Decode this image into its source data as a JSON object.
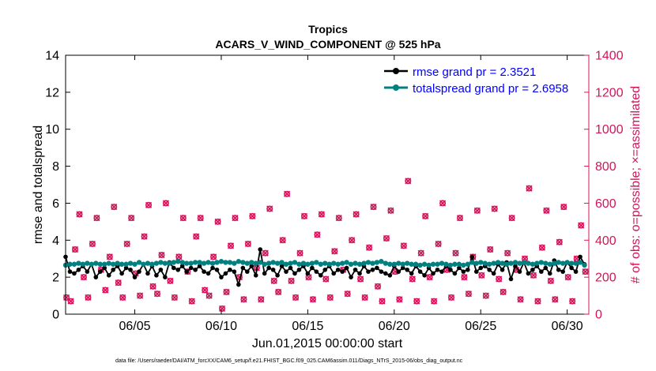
{
  "chart_data": {
    "type": "line",
    "title": "Tropics",
    "subtitle": "ACARS_V_WIND_COMPONENT @ 525 hPa",
    "xlabel": "Jun.01,2015 00:00:00 start",
    "ylabel": "rmse and totalspread",
    "y2label": "# of obs: o=possible; ×=assimilated",
    "footnote": "data file: /Users/raeder/DAI/ATM_forcXX/CAM6_setup/f.e21.FHIST_BGC.f09_025.CAM6assim.011/Diags_NTrS_2015-06/obs_diag_output.nc",
    "xlim": [
      1,
      31.25
    ],
    "ylim": [
      0,
      14
    ],
    "y2lim": [
      0,
      1400
    ],
    "xticks": [
      5,
      10,
      15,
      20,
      25,
      30
    ],
    "xtick_labels": [
      "06/05",
      "06/10",
      "06/15",
      "06/20",
      "06/25",
      "06/30"
    ],
    "yticks": [
      0,
      2,
      4,
      6,
      8,
      10,
      12,
      14
    ],
    "ytick_labels": [
      "0",
      "2",
      "4",
      "6",
      "8",
      "10",
      "12",
      "14"
    ],
    "y2ticks": [
      0,
      200,
      400,
      600,
      800,
      1000,
      1200,
      1400
    ],
    "y2tick_labels": [
      "0",
      "200",
      "400",
      "600",
      "800",
      "1000",
      "1200",
      "1400"
    ],
    "legend_position": "top-right",
    "colors": {
      "rmse": "#000000",
      "spread": "#008080",
      "obs": "#d4145a",
      "legend_text": "#0000ff",
      "axis": "#000000",
      "y2axis": "#d4145a"
    },
    "series": [
      {
        "name": "rmse grand pr = 2.3521",
        "x": [
          1.0,
          1.25,
          1.5,
          1.75,
          2.0,
          2.25,
          2.5,
          2.75,
          3.0,
          3.25,
          3.5,
          3.75,
          4.0,
          4.25,
          4.5,
          4.75,
          5.0,
          5.25,
          5.5,
          5.75,
          6.0,
          6.25,
          6.5,
          6.75,
          7.0,
          7.25,
          7.5,
          7.75,
          8.0,
          8.25,
          8.5,
          8.75,
          9.0,
          9.25,
          9.5,
          9.75,
          10.0,
          10.25,
          10.5,
          10.75,
          11.0,
          11.25,
          11.5,
          11.75,
          12.0,
          12.25,
          12.5,
          12.75,
          13.0,
          13.25,
          13.5,
          13.75,
          14.0,
          14.25,
          14.5,
          14.75,
          15.0,
          15.25,
          15.5,
          15.75,
          16.0,
          16.25,
          16.5,
          16.75,
          17.0,
          17.25,
          17.5,
          17.75,
          18.0,
          18.25,
          18.5,
          18.75,
          19.0,
          19.25,
          19.5,
          19.75,
          20.0,
          20.25,
          20.5,
          20.75,
          21.0,
          21.25,
          21.5,
          21.75,
          22.0,
          22.25,
          22.5,
          22.75,
          23.0,
          23.25,
          23.5,
          23.75,
          24.0,
          24.25,
          24.5,
          24.75,
          25.0,
          25.25,
          25.5,
          25.75,
          26.0,
          26.25,
          26.5,
          26.75,
          27.0,
          27.25,
          27.5,
          27.75,
          28.0,
          28.25,
          28.5,
          28.75,
          29.0,
          29.25,
          29.5,
          29.75,
          30.0,
          30.25,
          30.5,
          30.75,
          31.0
        ],
        "values": [
          3.1,
          2.3,
          2.2,
          2.4,
          2.6,
          2.3,
          2.7,
          2.0,
          2.3,
          2.5,
          2.1,
          2.4,
          2.6,
          2.2,
          2.5,
          2.4,
          2.0,
          2.3,
          2.7,
          2.2,
          2.6,
          2.1,
          2.4,
          2.0,
          2.8,
          2.5,
          2.4,
          2.6,
          2.3,
          2.5,
          2.4,
          2.6,
          2.3,
          2.2,
          2.5,
          2.4,
          2.0,
          2.2,
          2.4,
          2.3,
          1.6,
          2.5,
          2.3,
          2.6,
          2.1,
          3.5,
          2.2,
          2.5,
          2.4,
          2.1,
          2.6,
          2.3,
          2.5,
          2.2,
          2.4,
          2.6,
          2.2,
          2.5,
          2.3,
          2.1,
          2.4,
          2.6,
          2.2,
          2.4,
          2.3,
          2.5,
          2.0,
          2.4,
          2.2,
          2.6,
          2.3,
          2.4,
          2.5,
          2.3,
          2.2,
          2.1,
          2.6,
          2.3,
          2.5,
          2.4,
          2.2,
          2.6,
          2.3,
          2.1,
          2.5,
          2.2,
          2.4,
          2.3,
          2.6,
          2.4,
          2.2,
          2.5,
          2.3,
          2.4,
          3.1,
          2.3,
          2.5,
          2.6,
          2.4,
          2.2,
          2.7,
          2.4,
          2.8,
          1.9,
          2.6,
          2.3,
          2.8,
          2.2,
          2.4,
          2.6,
          2.3,
          2.5,
          2.2,
          2.9,
          2.4,
          2.3,
          2.8,
          2.5,
          2.3,
          3.1,
          2.7
        ]
      },
      {
        "name": "totalspread grand pr = 2.6958",
        "values": [
          2.65,
          2.7,
          2.7,
          2.75,
          2.7,
          2.75,
          2.7,
          2.75,
          2.7,
          2.7,
          2.75,
          2.7,
          2.75,
          2.7,
          2.7,
          2.75,
          2.7,
          2.8,
          2.7,
          2.75,
          2.7,
          2.75,
          2.8,
          2.75,
          2.75,
          2.8,
          2.85,
          2.8,
          2.75,
          2.75,
          2.8,
          2.8,
          2.75,
          2.8,
          2.75,
          2.8,
          2.85,
          2.8,
          2.8,
          2.75,
          2.85,
          2.8,
          2.75,
          2.8,
          2.75,
          2.8,
          2.7,
          2.75,
          2.8,
          2.75,
          2.8,
          2.7,
          2.75,
          2.8,
          2.7,
          2.75,
          2.7,
          2.75,
          2.8,
          2.7,
          2.75,
          2.7,
          2.75,
          2.7,
          2.75,
          2.8,
          2.7,
          2.75,
          2.7,
          2.75,
          2.8,
          2.75,
          2.8,
          2.85,
          2.75,
          2.7,
          2.7,
          2.75,
          2.7,
          2.75,
          2.7,
          2.7,
          2.65,
          2.7,
          2.65,
          2.7,
          2.7,
          2.75,
          2.7,
          2.65,
          2.7,
          2.7,
          2.65,
          2.7,
          2.8,
          2.75,
          2.8,
          2.75,
          2.7,
          2.75,
          2.8,
          2.75,
          2.7,
          2.75,
          2.8,
          2.75,
          2.8,
          2.75,
          2.7,
          2.75,
          2.8,
          2.75,
          2.7,
          2.75,
          2.8,
          2.75,
          2.8,
          2.75,
          2.75,
          2.8,
          2.65
        ]
      }
    ],
    "obs_counts": {
      "name": "# of obs",
      "x": [
        1.05,
        1.3,
        1.55,
        1.8,
        2.05,
        2.3,
        2.55,
        2.8,
        3.05,
        3.3,
        3.55,
        3.8,
        4.05,
        4.3,
        4.55,
        4.8,
        5.05,
        5.3,
        5.55,
        5.8,
        6.05,
        6.3,
        6.55,
        6.8,
        7.05,
        7.3,
        7.55,
        7.8,
        8.05,
        8.3,
        8.55,
        8.8,
        9.05,
        9.3,
        9.55,
        9.8,
        10.05,
        10.3,
        10.55,
        10.8,
        11.05,
        11.3,
        11.55,
        11.8,
        12.05,
        12.3,
        12.55,
        12.8,
        13.05,
        13.3,
        13.55,
        13.8,
        14.05,
        14.3,
        14.55,
        14.8,
        15.05,
        15.3,
        15.55,
        15.8,
        16.05,
        16.3,
        16.55,
        16.8,
        17.05,
        17.3,
        17.55,
        17.8,
        18.05,
        18.3,
        18.55,
        18.8,
        19.05,
        19.3,
        19.55,
        19.8,
        20.05,
        20.3,
        20.55,
        20.8,
        21.05,
        21.3,
        21.55,
        21.8,
        22.05,
        22.3,
        22.55,
        22.8,
        23.05,
        23.3,
        23.55,
        23.8,
        24.05,
        24.3,
        24.55,
        24.8,
        25.05,
        25.3,
        25.55,
        25.8,
        26.05,
        26.3,
        26.55,
        26.8,
        27.05,
        27.3,
        27.55,
        27.8,
        28.05,
        28.3,
        28.55,
        28.8,
        29.05,
        29.3,
        29.55,
        29.8,
        30.05,
        30.3,
        30.55,
        30.8,
        31.05
      ],
      "values": [
        90,
        70,
        350,
        540,
        200,
        90,
        380,
        520,
        240,
        130,
        310,
        580,
        170,
        90,
        380,
        520,
        220,
        100,
        420,
        590,
        150,
        110,
        320,
        600,
        180,
        90,
        310,
        520,
        230,
        70,
        420,
        520,
        130,
        100,
        310,
        500,
        30,
        120,
        370,
        520,
        200,
        80,
        380,
        530,
        250,
        80,
        330,
        570,
        180,
        120,
        400,
        650,
        180,
        90,
        330,
        530,
        200,
        80,
        430,
        540,
        190,
        90,
        340,
        520,
        240,
        110,
        400,
        540,
        190,
        90,
        360,
        580,
        150,
        70,
        410,
        560,
        230,
        80,
        370,
        720,
        190,
        70,
        330,
        530,
        200,
        70,
        380,
        600,
        240,
        90,
        330,
        520,
        200,
        110,
        310,
        560,
        210,
        100,
        350,
        570,
        190,
        120,
        330,
        520,
        240,
        80,
        300,
        680,
        210,
        70,
        360,
        560,
        180,
        80,
        390,
        580,
        200,
        70,
        300,
        480,
        230
      ]
    }
  }
}
